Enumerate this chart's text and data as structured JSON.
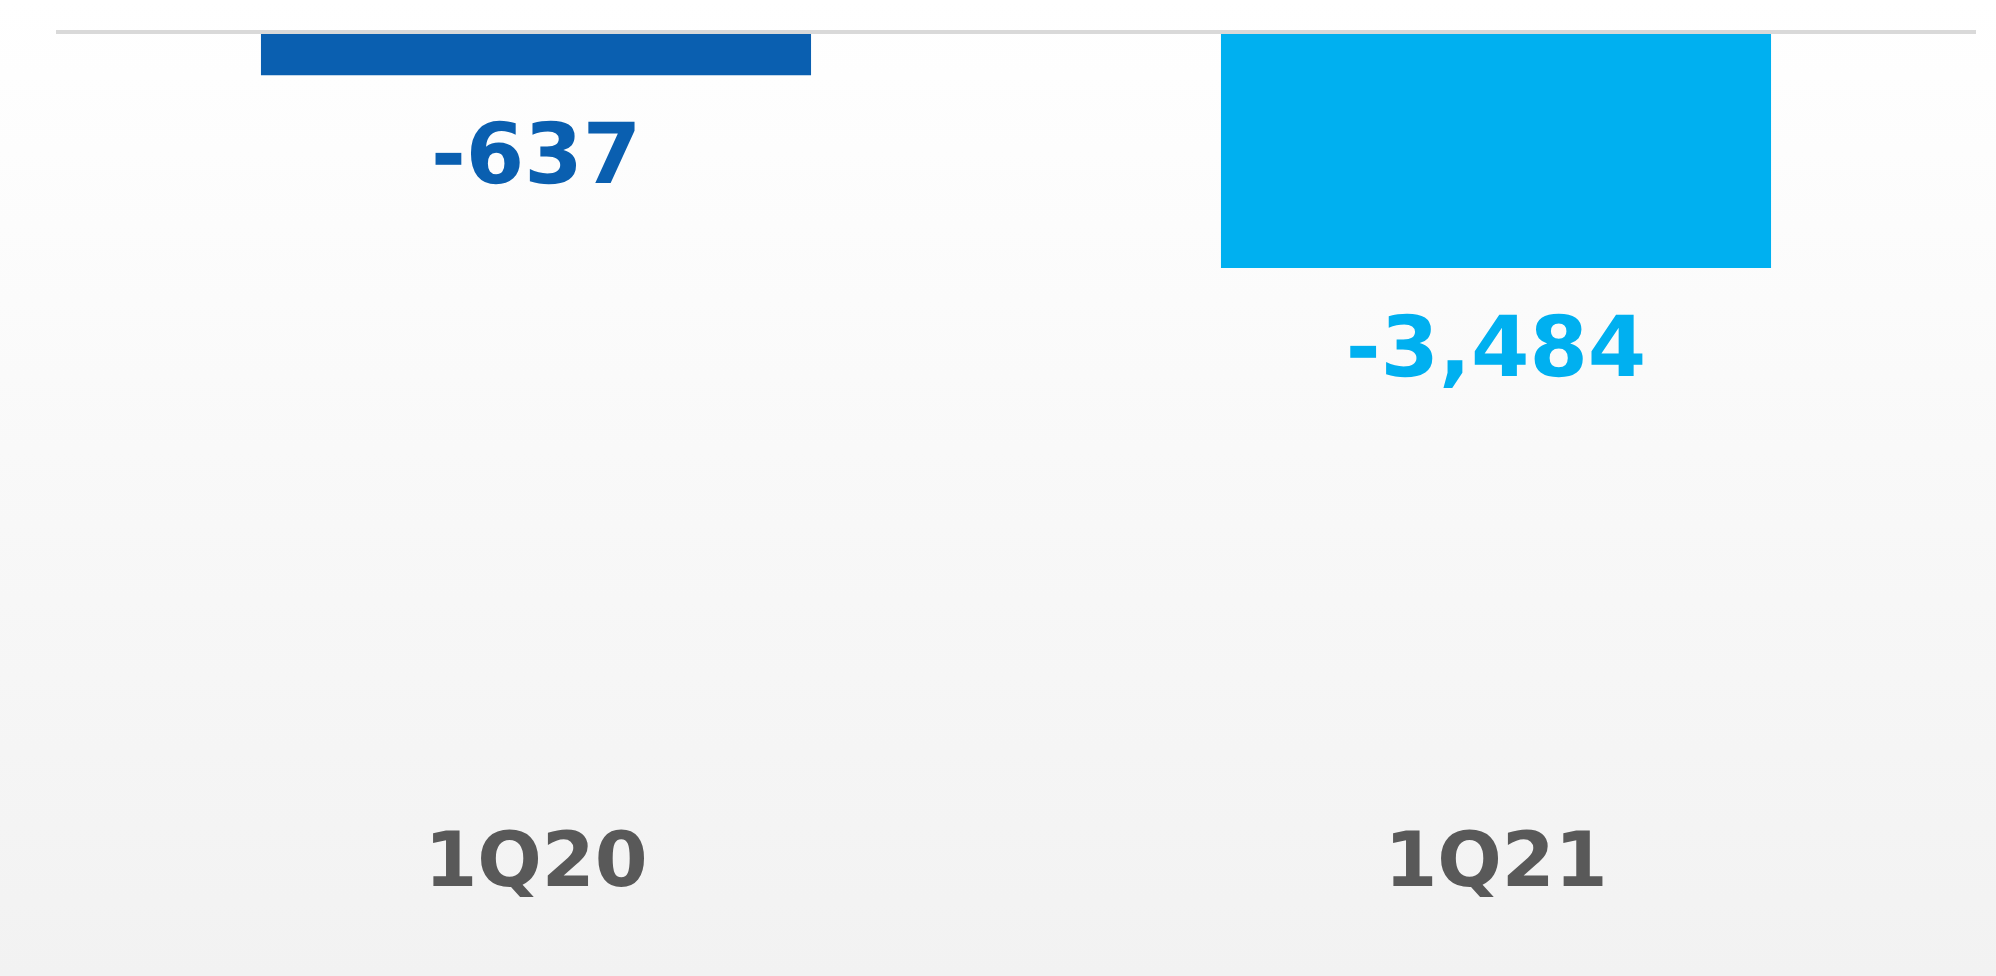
{
  "chart_data": {
    "type": "bar",
    "categories": [
      "1Q20",
      "1Q21"
    ],
    "values": [
      -637,
      -3484
    ],
    "colors": [
      "#0a5fb0",
      "#00b0f0"
    ],
    "value_labels": [
      "-637",
      "-3,484"
    ],
    "tick_labels": "x",
    "data_labels": true,
    "grid": false,
    "legend": false
  }
}
